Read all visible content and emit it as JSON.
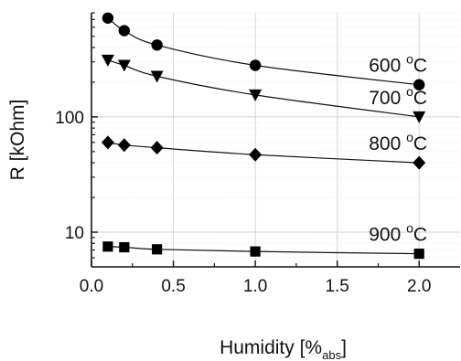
{
  "chart_data": {
    "type": "scatter",
    "xlabel": "Humidity [%",
    "xlabel_sub": "abs",
    "xlabel_tail": "]",
    "ylabel": "R [kOhm]",
    "xlim": [
      0.0,
      2.25
    ],
    "ylim": [
      5,
      800
    ],
    "yscale": "log",
    "grid": true,
    "x_ticks": [
      0.0,
      0.5,
      1.0,
      1.5,
      2.0
    ],
    "x_tick_labels": [
      "0.0",
      "0.5",
      "1.0",
      "1.5",
      "2.0"
    ],
    "y_ticks": [
      10,
      100
    ],
    "y_tick_labels": [
      "10",
      "100"
    ],
    "series": [
      {
        "name": "600 °C",
        "label_main": "600 ",
        "label_sup": "o",
        "label_unit": "C",
        "marker": "circle",
        "x": [
          0.1,
          0.2,
          0.4,
          1.0,
          2.0
        ],
        "y": [
          720,
          560,
          420,
          280,
          190
        ]
      },
      {
        "name": "700 °C",
        "label_main": "700 ",
        "label_sup": "o",
        "label_unit": "C",
        "marker": "triangle-down",
        "x": [
          0.1,
          0.2,
          0.4,
          1.0,
          2.0
        ],
        "y": [
          310,
          280,
          225,
          155,
          100
        ]
      },
      {
        "name": "800 °C",
        "label_main": "800 ",
        "label_sup": "o",
        "label_unit": "C",
        "marker": "diamond",
        "x": [
          0.1,
          0.2,
          0.4,
          1.0,
          2.0
        ],
        "y": [
          60,
          57,
          54,
          47,
          40
        ]
      },
      {
        "name": "900 °C",
        "label_main": "900 ",
        "label_sup": "o",
        "label_unit": "C",
        "marker": "square",
        "x": [
          0.1,
          0.2,
          0.4,
          1.0,
          2.0
        ],
        "y": [
          7.5,
          7.4,
          7.1,
          6.8,
          6.5
        ]
      }
    ]
  }
}
